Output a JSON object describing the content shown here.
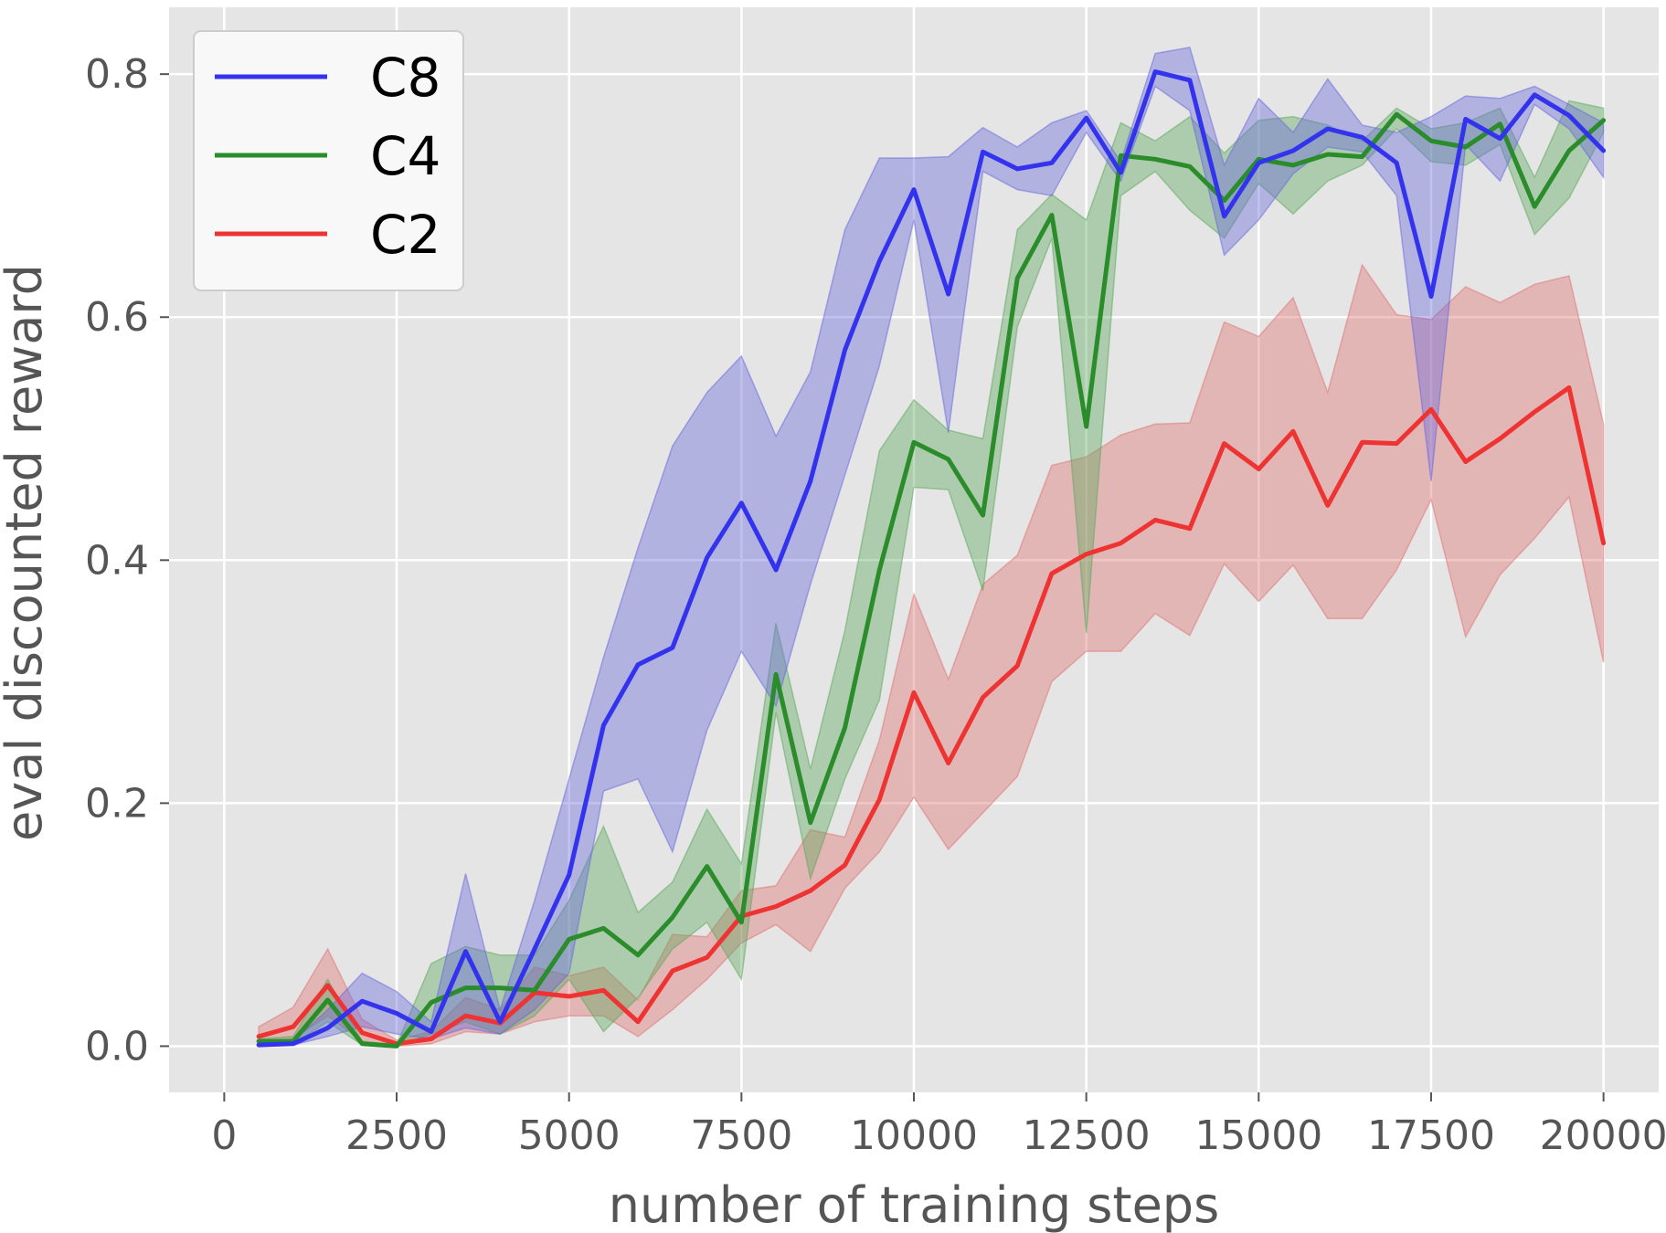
{
  "chart_data": {
    "type": "line",
    "title": "",
    "xlabel": "number of training steps",
    "ylabel": "eval discounted reward",
    "xlim": [
      -800,
      20800
    ],
    "ylim": [
      -0.038,
      0.855
    ],
    "xticks": [
      0,
      2500,
      5000,
      7500,
      10000,
      12500,
      15000,
      17500,
      20000
    ],
    "xtick_labels": [
      "0",
      "2500",
      "5000",
      "7500",
      "10000",
      "12500",
      "15000",
      "17500",
      "20000"
    ],
    "yticks": [
      0.0,
      0.2,
      0.4,
      0.6,
      0.8
    ],
    "ytick_labels": [
      "0.0",
      "0.2",
      "0.4",
      "0.6",
      "0.8"
    ],
    "grid": true,
    "legend_position": "top-left",
    "x": [
      500,
      1000,
      1500,
      2000,
      2500,
      3000,
      3500,
      4000,
      4500,
      5000,
      5500,
      6000,
      6500,
      7000,
      7500,
      8000,
      8500,
      9000,
      9500,
      10000,
      10500,
      11000,
      11500,
      12000,
      12500,
      13000,
      13500,
      14000,
      14500,
      15000,
      15500,
      16000,
      16500,
      17000,
      17500,
      18000,
      18500,
      19000,
      19500,
      20000
    ],
    "series": [
      {
        "name": "C8",
        "color": "#3333ee",
        "band_color": "#6666dd",
        "values": [
          0.001,
          0.002,
          0.015,
          0.037,
          0.027,
          0.012,
          0.078,
          0.02,
          0.08,
          0.141,
          0.264,
          0.314,
          0.328,
          0.402,
          0.447,
          0.392,
          0.465,
          0.573,
          0.646,
          0.705,
          0.619,
          0.736,
          0.722,
          0.727,
          0.764,
          0.719,
          0.802,
          0.795,
          0.683,
          0.727,
          0.737,
          0.755,
          0.748,
          0.727,
          0.617,
          0.763,
          0.747,
          0.783,
          0.766,
          0.737
        ],
        "lower": [
          0.0,
          0.001,
          0.008,
          0.016,
          0.01,
          0.006,
          0.015,
          0.01,
          0.03,
          0.06,
          0.21,
          0.22,
          0.16,
          0.26,
          0.325,
          0.28,
          0.38,
          0.47,
          0.56,
          0.68,
          0.505,
          0.72,
          0.705,
          0.7,
          0.752,
          0.712,
          0.79,
          0.77,
          0.651,
          0.68,
          0.718,
          0.74,
          0.736,
          0.7,
          0.465,
          0.742,
          0.712,
          0.775,
          0.755,
          0.715
        ],
        "upper": [
          0.002,
          0.004,
          0.03,
          0.06,
          0.045,
          0.02,
          0.142,
          0.03,
          0.12,
          0.22,
          0.32,
          0.41,
          0.494,
          0.538,
          0.568,
          0.502,
          0.555,
          0.672,
          0.731,
          0.731,
          0.732,
          0.756,
          0.74,
          0.76,
          0.77,
          0.728,
          0.817,
          0.822,
          0.725,
          0.78,
          0.752,
          0.796,
          0.758,
          0.752,
          0.765,
          0.782,
          0.78,
          0.79,
          0.775,
          0.76
        ]
      },
      {
        "name": "C4",
        "color": "#2a8c2a",
        "band_color": "#5aa85a",
        "values": [
          0.004,
          0.004,
          0.038,
          0.002,
          0.0,
          0.036,
          0.048,
          0.048,
          0.046,
          0.088,
          0.097,
          0.075,
          0.106,
          0.148,
          0.102,
          0.306,
          0.184,
          0.262,
          0.392,
          0.497,
          0.483,
          0.437,
          0.632,
          0.684,
          0.51,
          0.733,
          0.73,
          0.724,
          0.696,
          0.73,
          0.725,
          0.734,
          0.732,
          0.767,
          0.745,
          0.74,
          0.759,
          0.691,
          0.737,
          0.762
        ],
        "lower": [
          0.002,
          0.002,
          0.02,
          0.001,
          0.0,
          0.01,
          0.02,
          0.01,
          0.025,
          0.055,
          0.012,
          0.04,
          0.08,
          0.102,
          0.055,
          0.275,
          0.138,
          0.22,
          0.285,
          0.46,
          0.458,
          0.375,
          0.592,
          0.665,
          0.34,
          0.7,
          0.72,
          0.688,
          0.665,
          0.71,
          0.685,
          0.712,
          0.725,
          0.755,
          0.728,
          0.725,
          0.742,
          0.668,
          0.698,
          0.752
        ],
        "upper": [
          0.006,
          0.008,
          0.055,
          0.004,
          0.001,
          0.068,
          0.082,
          0.075,
          0.075,
          0.12,
          0.181,
          0.11,
          0.135,
          0.195,
          0.15,
          0.348,
          0.228,
          0.342,
          0.49,
          0.532,
          0.507,
          0.5,
          0.672,
          0.701,
          0.68,
          0.76,
          0.745,
          0.765,
          0.735,
          0.762,
          0.765,
          0.758,
          0.745,
          0.772,
          0.755,
          0.76,
          0.772,
          0.715,
          0.778,
          0.772
        ]
      },
      {
        "name": "C2",
        "color": "#ee3333",
        "band_color": "#e07070",
        "values": [
          0.008,
          0.016,
          0.05,
          0.011,
          0.002,
          0.006,
          0.025,
          0.019,
          0.044,
          0.041,
          0.046,
          0.02,
          0.062,
          0.073,
          0.107,
          0.115,
          0.128,
          0.149,
          0.203,
          0.291,
          0.233,
          0.287,
          0.313,
          0.389,
          0.405,
          0.414,
          0.433,
          0.426,
          0.496,
          0.475,
          0.506,
          0.445,
          0.497,
          0.496,
          0.524,
          0.481,
          0.5,
          0.522,
          0.542,
          0.414
        ],
        "lower": [
          0.003,
          0.006,
          0.025,
          0.004,
          0.0,
          0.002,
          0.012,
          0.01,
          0.02,
          0.025,
          0.025,
          0.008,
          0.03,
          0.055,
          0.085,
          0.1,
          0.078,
          0.13,
          0.16,
          0.205,
          0.162,
          0.192,
          0.222,
          0.3,
          0.325,
          0.325,
          0.356,
          0.338,
          0.397,
          0.366,
          0.396,
          0.352,
          0.352,
          0.392,
          0.45,
          0.337,
          0.388,
          0.418,
          0.452,
          0.316
        ],
        "upper": [
          0.016,
          0.032,
          0.08,
          0.022,
          0.005,
          0.012,
          0.04,
          0.03,
          0.065,
          0.058,
          0.065,
          0.038,
          0.092,
          0.09,
          0.128,
          0.132,
          0.178,
          0.172,
          0.252,
          0.372,
          0.302,
          0.38,
          0.404,
          0.478,
          0.485,
          0.503,
          0.512,
          0.513,
          0.596,
          0.584,
          0.616,
          0.538,
          0.643,
          0.602,
          0.598,
          0.625,
          0.612,
          0.627,
          0.634,
          0.512
        ]
      }
    ]
  }
}
